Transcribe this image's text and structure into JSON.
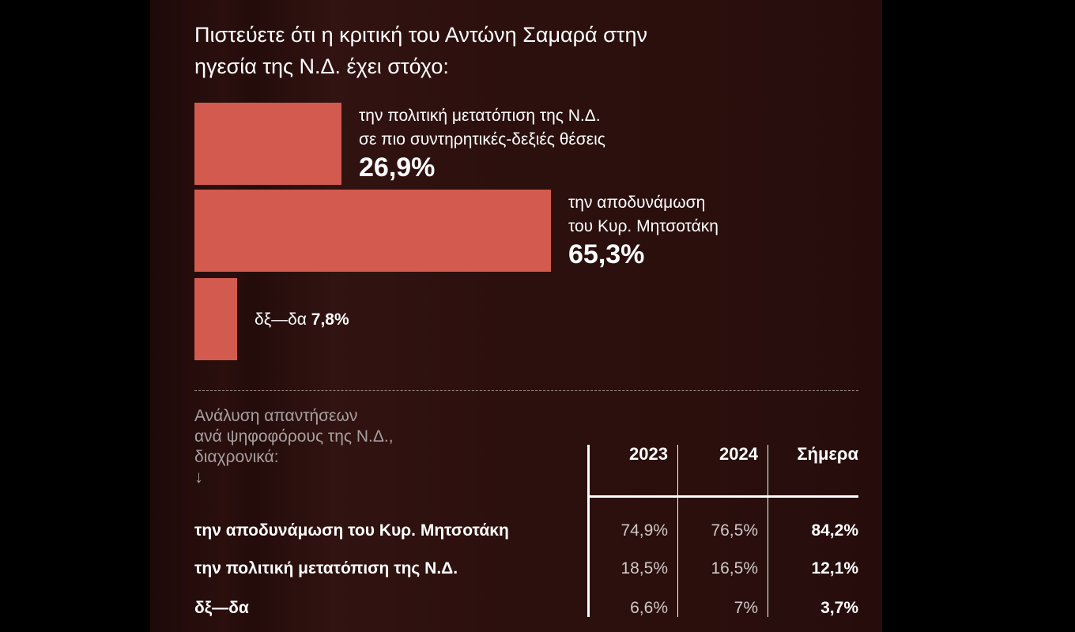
{
  "chart_data": [
    {
      "type": "bar",
      "orientation": "horizontal",
      "title": "Πιστεύετε ότι η κριτική του Αντώνη Σαμαρά στην ηγεσία της Ν.Δ. έχει στόχο:",
      "categories": [
        "την πολιτική μετατόπιση της Ν.Δ. σε πιο συντηρητικές-δεξιές θέσεις",
        "την αποδυνάμωση του Κυρ. Μητσοτάκη",
        "δξ—δα"
      ],
      "values": [
        26.9,
        65.3,
        7.8
      ],
      "unit": "%",
      "xlim": [
        0,
        100
      ],
      "bar_color": "#d35a4f",
      "labels": [
        {
          "lines": [
            "την πολιτική μετατόπιση της Ν.Δ.",
            "σε πιο συντηρητικές-δεξιές θέσεις"
          ],
          "value": "26,9%"
        },
        {
          "lines": [
            "την αποδυνάμωση",
            "του Κυρ. Μητσοτάκη"
          ],
          "value": "65,3%"
        },
        {
          "lines": [
            "δξ—δα "
          ],
          "value": "7,8%"
        }
      ]
    },
    {
      "type": "table",
      "title_lines": [
        "Ανάλυση απαντήσεων",
        "ανά ψηφοφόρους της Ν.Δ.,",
        "διαχρονικά:"
      ],
      "arrow": "↓",
      "columns": [
        "2023",
        "2024",
        "Σήμερα"
      ],
      "rows": [
        {
          "label": "την αποδυνάμωση του Κυρ. Μητσοτάκη",
          "values": [
            "74,9%",
            "76,5%",
            "84,2%"
          ]
        },
        {
          "label": "την πολιτική μετατόπιση της Ν.Δ.",
          "values": [
            "18,5%",
            "16,5%",
            "12,1%"
          ]
        },
        {
          "label": "δξ—δα",
          "values": [
            "6,6%",
            "7%",
            "3,7%"
          ]
        }
      ]
    }
  ]
}
